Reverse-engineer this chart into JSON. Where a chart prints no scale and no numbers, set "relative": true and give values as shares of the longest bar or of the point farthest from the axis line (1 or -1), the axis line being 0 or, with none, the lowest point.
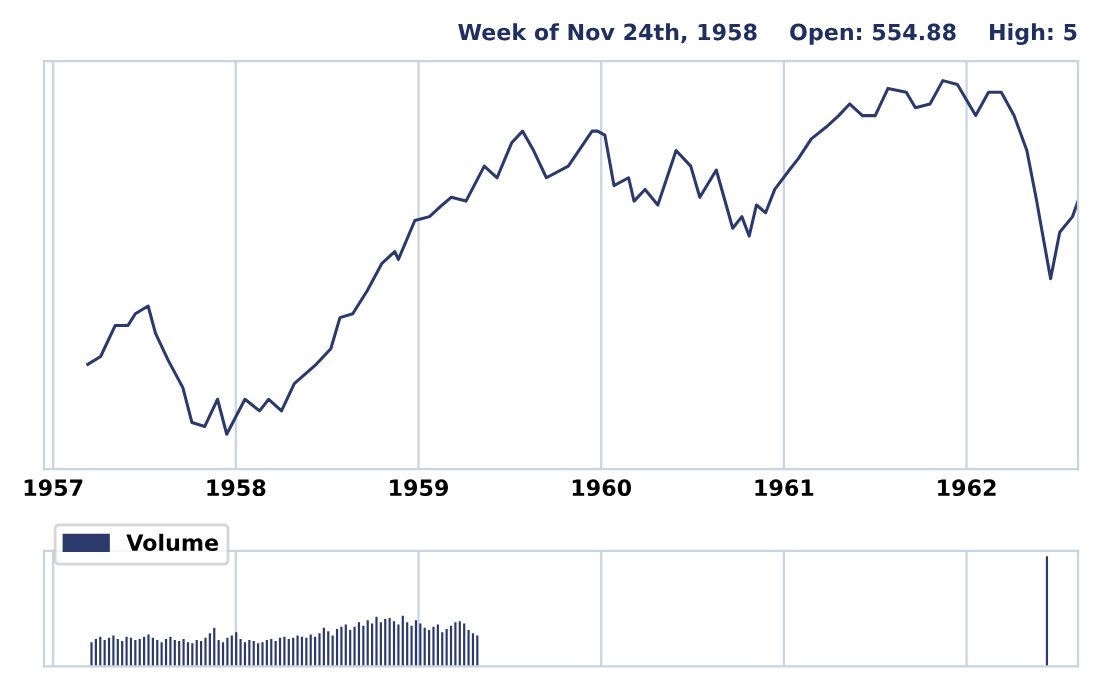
{
  "chart_data": [
    {
      "type": "line",
      "subtitle": "Week of Nov 24th, 1958    Open: 554.88    High: 5",
      "relative": true,
      "grid": "x",
      "legend": false,
      "xlim": [
        1956.95,
        1962.61
      ],
      "xticks": [
        1957,
        1958,
        1959,
        1960,
        1961,
        1962
      ],
      "series": [
        {
          "color": "#2b3a6b",
          "x": [
            1957.19,
            1957.26,
            1957.34,
            1957.41,
            1957.45,
            1957.52,
            1957.56,
            1957.63,
            1957.71,
            1957.76,
            1957.83,
            1957.9,
            1957.95,
            1958.05,
            1958.13,
            1958.18,
            1958.25,
            1958.32,
            1958.44,
            1958.52,
            1958.57,
            1958.64,
            1958.72,
            1958.8,
            1958.87,
            1958.89,
            1958.98,
            1959.06,
            1959.13,
            1959.18,
            1959.26,
            1959.36,
            1959.43,
            1959.51,
            1959.57,
            1959.63,
            1959.7,
            1959.82,
            1959.95,
            1959.98,
            1960.02,
            1960.07,
            1960.15,
            1960.18,
            1960.24,
            1960.31,
            1960.41,
            1960.49,
            1960.54,
            1960.63,
            1960.72,
            1960.77,
            1960.81,
            1960.85,
            1960.9,
            1960.95,
            1961.03,
            1961.08,
            1961.15,
            1961.23,
            1961.3,
            1961.36,
            1961.43,
            1961.5,
            1961.57,
            1961.67,
            1961.72,
            1961.8,
            1961.87,
            1961.95,
            1962.05,
            1962.12,
            1962.19,
            1962.26,
            1962.33,
            1962.38,
            1962.46,
            1962.51,
            1962.58,
            1962.61
          ],
          "values": [
            0.27,
            0.29,
            0.37,
            0.37,
            0.4,
            0.42,
            0.35,
            0.28,
            0.21,
            0.12,
            0.11,
            0.18,
            0.09,
            0.18,
            0.15,
            0.18,
            0.15,
            0.22,
            0.27,
            0.31,
            0.39,
            0.4,
            0.46,
            0.53,
            0.56,
            0.54,
            0.64,
            0.65,
            0.68,
            0.7,
            0.69,
            0.78,
            0.75,
            0.84,
            0.87,
            0.82,
            0.75,
            0.78,
            0.87,
            0.87,
            0.86,
            0.73,
            0.75,
            0.69,
            0.72,
            0.68,
            0.82,
            0.78,
            0.7,
            0.77,
            0.62,
            0.65,
            0.6,
            0.68,
            0.66,
            0.72,
            0.77,
            0.8,
            0.85,
            0.88,
            0.91,
            0.94,
            0.91,
            0.91,
            0.98,
            0.97,
            0.93,
            0.94,
            1,
            0.99,
            0.91,
            0.97,
            0.97,
            0.91,
            0.82,
            0.7,
            0.49,
            0.61,
            0.65,
            0.69
          ]
        }
      ]
    },
    {
      "type": "bar",
      "relative": true,
      "grid": "x",
      "legend": "top left",
      "tick_labels": false,
      "xlim": [
        1956.95,
        1962.61
      ],
      "xticks": [
        1957,
        1958,
        1959,
        1960,
        1961,
        1962
      ],
      "series": [
        {
          "name": "Volume",
          "color": "#2b3a6b",
          "x": [
            1957.21,
            1957.234,
            1957.258,
            1957.282,
            1957.306,
            1957.33,
            1957.354,
            1957.378,
            1957.402,
            1957.426,
            1957.45,
            1957.474,
            1957.498,
            1957.522,
            1957.546,
            1957.57,
            1957.594,
            1957.618,
            1957.642,
            1957.666,
            1957.69,
            1957.714,
            1957.738,
            1957.762,
            1957.786,
            1957.81,
            1957.834,
            1957.858,
            1957.882,
            1957.906,
            1957.93,
            1957.954,
            1957.978,
            1958.002,
            1958.026,
            1958.05,
            1958.074,
            1958.098,
            1958.122,
            1958.146,
            1958.17,
            1958.194,
            1958.218,
            1958.242,
            1958.266,
            1958.29,
            1958.314,
            1958.338,
            1958.362,
            1958.386,
            1958.41,
            1958.434,
            1958.458,
            1958.482,
            1958.506,
            1958.53,
            1958.554,
            1958.578,
            1958.602,
            1958.626,
            1958.65,
            1958.674,
            1958.698,
            1958.722,
            1958.746,
            1958.77,
            1958.794,
            1958.818,
            1958.842,
            1958.866,
            1958.89,
            1958.914,
            1958.938,
            1958.962,
            1958.986,
            1959.01,
            1959.034,
            1959.058,
            1959.082,
            1959.106,
            1959.13,
            1959.154,
            1959.178,
            1959.202,
            1959.226,
            1959.25,
            1959.274,
            1959.298,
            1959.322,
            1962.44
          ],
          "values": [
            0.22,
            0.25,
            0.27,
            0.24,
            0.26,
            0.28,
            0.25,
            0.23,
            0.27,
            0.26,
            0.24,
            0.25,
            0.27,
            0.29,
            0.26,
            0.24,
            0.22,
            0.25,
            0.27,
            0.24,
            0.23,
            0.25,
            0.22,
            0.21,
            0.24,
            0.23,
            0.26,
            0.3,
            0.35,
            0.24,
            0.22,
            0.26,
            0.28,
            0.31,
            0.25,
            0.22,
            0.24,
            0.23,
            0.21,
            0.22,
            0.24,
            0.25,
            0.23,
            0.26,
            0.27,
            0.25,
            0.26,
            0.28,
            0.27,
            0.26,
            0.29,
            0.27,
            0.3,
            0.35,
            0.32,
            0.28,
            0.34,
            0.36,
            0.38,
            0.33,
            0.36,
            0.4,
            0.37,
            0.42,
            0.39,
            0.45,
            0.4,
            0.43,
            0.44,
            0.41,
            0.38,
            0.46,
            0.4,
            0.37,
            0.42,
            0.39,
            0.35,
            0.33,
            0.36,
            0.38,
            0.31,
            0.34,
            0.37,
            0.4,
            0.41,
            0.39,
            0.33,
            0.3,
            0.28,
            1
          ]
        }
      ]
    }
  ]
}
